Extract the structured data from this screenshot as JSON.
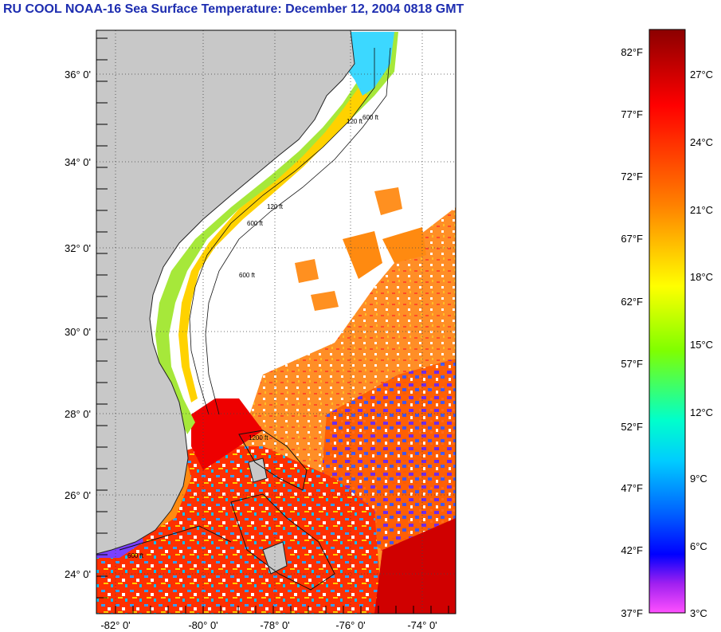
{
  "title": "RU COOL  NOAA-16  Sea Surface Temperature:  December 12, 2004 0818 GMT",
  "map": {
    "lat_labels": [
      "36° 0'",
      "34° 0'",
      "32° 0'",
      "30° 0'",
      "28° 0'",
      "26° 0'",
      "24° 0'"
    ],
    "lon_labels": [
      "-82° 0'",
      "-80° 0'",
      "-78° 0'",
      "-76° 0'",
      "-74° 0'"
    ],
    "contour_labels": [
      "120 ft",
      "600 ft",
      "600 ft",
      "120 ft",
      "600 ft",
      "1200 ft",
      "600 ft"
    ],
    "land_color": "#c8c8c8",
    "cloud_color": "#ffffff"
  },
  "colorbar": {
    "f_labels": [
      "82°F",
      "77°F",
      "72°F",
      "67°F",
      "62°F",
      "57°F",
      "52°F",
      "47°F",
      "42°F",
      "37°F"
    ],
    "c_labels": [
      "27°C",
      "24°C",
      "21°C",
      "18°C",
      "15°C",
      "12°C",
      "9°C",
      "6°C",
      "3°C"
    ],
    "colors": [
      "#8b0000",
      "#ff0000",
      "#ff8000",
      "#ffff00",
      "#80ff00",
      "#00ff80",
      "#00ffff",
      "#0080ff",
      "#0000ff",
      "#8000ff",
      "#ff40ff"
    ]
  }
}
